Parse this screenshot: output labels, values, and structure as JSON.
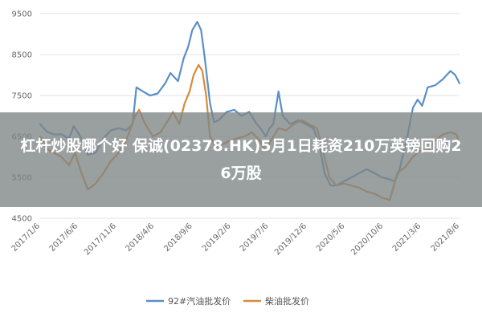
{
  "headline": "杠杆炒股哪个好 保诚(02378.HK)5月1日耗资210万英镑回购26万股",
  "colors": {
    "series1": "#5b8fc9",
    "series2": "#d98a3a",
    "grid": "#e2e2e2",
    "banner": "#7d8585"
  },
  "chart_data": {
    "type": "line",
    "title": "",
    "xlabel": "",
    "ylabel": "",
    "ylim": [
      4500,
      9500
    ],
    "yticks": [
      4500,
      5500,
      6500,
      7500,
      8500,
      9500
    ],
    "ytick_labels": [
      "4500",
      "5500",
      "6500",
      "7500",
      "8500",
      "9500"
    ],
    "xlim": [
      "2017-01-06",
      "2021-08-06"
    ],
    "xticks": [
      "2017-01-06",
      "2017-06-06",
      "2017-11-06",
      "2018-04-06",
      "2018-09-06",
      "2019-02-06",
      "2019-07-06",
      "2019-12-06",
      "2020-05-06",
      "2020-10-06",
      "2021-03-06",
      "2021-08-06"
    ],
    "xtick_labels": [
      "2017/1/6",
      "2017/6/6",
      "2017/11/6",
      "2018/4/6",
      "2018/9/6",
      "2019/2/6",
      "2019/7/6",
      "2019/12/6",
      "2020/5/6",
      "2020/10/6",
      "2021/3/6",
      "2021/8/6"
    ],
    "grid": "horizontal",
    "legend_position": "bottom",
    "series": [
      {
        "name": "92#汽油批发价",
        "color": "#5b8fc9",
        "points": [
          [
            "2017-01-06",
            6800
          ],
          [
            "2017-02-01",
            6620
          ],
          [
            "2017-03-01",
            6550
          ],
          [
            "2017-04-01",
            6550
          ],
          [
            "2017-05-01",
            6450
          ],
          [
            "2017-05-20",
            6750
          ],
          [
            "2017-06-15",
            6500
          ],
          [
            "2017-07-15",
            6050
          ],
          [
            "2017-08-15",
            6100
          ],
          [
            "2017-09-15",
            6450
          ],
          [
            "2017-10-15",
            6650
          ],
          [
            "2017-11-15",
            6700
          ],
          [
            "2017-12-15",
            6650
          ],
          [
            "2018-01-10",
            6800
          ],
          [
            "2018-01-25",
            7700
          ],
          [
            "2018-02-20",
            7600
          ],
          [
            "2018-03-20",
            7500
          ],
          [
            "2018-04-20",
            7550
          ],
          [
            "2018-05-20",
            7800
          ],
          [
            "2018-06-10",
            8050
          ],
          [
            "2018-07-10",
            7850
          ],
          [
            "2018-08-01",
            8400
          ],
          [
            "2018-08-20",
            8700
          ],
          [
            "2018-09-05",
            9100
          ],
          [
            "2018-09-25",
            9300
          ],
          [
            "2018-10-10",
            9100
          ],
          [
            "2018-10-25",
            8400
          ],
          [
            "2018-11-15",
            7300
          ],
          [
            "2018-12-01",
            6850
          ],
          [
            "2018-12-20",
            6900
          ],
          [
            "2019-01-20",
            7100
          ],
          [
            "2019-02-20",
            7150
          ],
          [
            "2019-03-20",
            7000
          ],
          [
            "2019-04-20",
            7100
          ],
          [
            "2019-05-15",
            6850
          ],
          [
            "2019-06-10",
            6650
          ],
          [
            "2019-06-25",
            6500
          ],
          [
            "2019-07-10",
            6700
          ],
          [
            "2019-07-25",
            6800
          ],
          [
            "2019-08-15",
            7600
          ],
          [
            "2019-09-01",
            7000
          ],
          [
            "2019-10-01",
            6800
          ],
          [
            "2019-11-01",
            6900
          ],
          [
            "2019-12-01",
            6800
          ],
          [
            "2020-01-01",
            6700
          ],
          [
            "2020-01-25",
            6300
          ],
          [
            "2020-02-15",
            5600
          ],
          [
            "2020-03-10",
            5300
          ],
          [
            "2020-04-01",
            5300
          ],
          [
            "2020-05-01",
            5400
          ],
          [
            "2020-06-01",
            5500
          ],
          [
            "2020-07-01",
            5600
          ],
          [
            "2020-08-01",
            5700
          ],
          [
            "2020-09-01",
            5600
          ],
          [
            "2020-10-01",
            5500
          ],
          [
            "2020-11-01",
            5450
          ],
          [
            "2020-11-20",
            5400
          ],
          [
            "2020-12-10",
            5700
          ],
          [
            "2021-01-10",
            6500
          ],
          [
            "2021-02-01",
            7200
          ],
          [
            "2021-02-20",
            7400
          ],
          [
            "2021-03-10",
            7250
          ],
          [
            "2021-04-01",
            7700
          ],
          [
            "2021-05-01",
            7750
          ],
          [
            "2021-06-01",
            7900
          ],
          [
            "2021-07-01",
            8100
          ],
          [
            "2021-07-20",
            8000
          ],
          [
            "2021-08-06",
            7800
          ]
        ]
      },
      {
        "name": "柴油批发价",
        "color": "#d98a3a",
        "points": [
          [
            "2017-01-06",
            6500
          ],
          [
            "2017-02-01",
            6200
          ],
          [
            "2017-03-01",
            6100
          ],
          [
            "2017-04-01",
            6000
          ],
          [
            "2017-05-01",
            5800
          ],
          [
            "2017-05-25",
            6100
          ],
          [
            "2017-06-20",
            5600
          ],
          [
            "2017-07-15",
            5200
          ],
          [
            "2017-08-15",
            5350
          ],
          [
            "2017-09-15",
            5600
          ],
          [
            "2017-10-15",
            5900
          ],
          [
            "2017-11-15",
            6100
          ],
          [
            "2017-12-15",
            6400
          ],
          [
            "2018-01-20",
            7000
          ],
          [
            "2018-02-05",
            7150
          ],
          [
            "2018-03-01",
            6800
          ],
          [
            "2018-04-01",
            6500
          ],
          [
            "2018-05-01",
            6600
          ],
          [
            "2018-06-01",
            6900
          ],
          [
            "2018-06-20",
            7100
          ],
          [
            "2018-07-15",
            6800
          ],
          [
            "2018-08-05",
            7300
          ],
          [
            "2018-08-25",
            7600
          ],
          [
            "2018-09-10",
            8000
          ],
          [
            "2018-09-30",
            8250
          ],
          [
            "2018-10-15",
            8100
          ],
          [
            "2018-10-30",
            7500
          ],
          [
            "2018-11-15",
            6500
          ],
          [
            "2018-12-05",
            6250
          ],
          [
            "2019-01-01",
            6300
          ],
          [
            "2019-02-01",
            6400
          ],
          [
            "2019-03-01",
            6450
          ],
          [
            "2019-04-01",
            6500
          ],
          [
            "2019-05-01",
            6600
          ],
          [
            "2019-06-01",
            6400
          ],
          [
            "2019-06-25",
            6150
          ],
          [
            "2019-07-15",
            6400
          ],
          [
            "2019-08-15",
            6700
          ],
          [
            "2019-09-15",
            6650
          ],
          [
            "2019-10-15",
            6800
          ],
          [
            "2019-11-15",
            6900
          ],
          [
            "2019-12-15",
            6800
          ],
          [
            "2020-01-15",
            6700
          ],
          [
            "2020-02-10",
            6100
          ],
          [
            "2020-03-05",
            5500
          ],
          [
            "2020-04-01",
            5300
          ],
          [
            "2020-05-01",
            5350
          ],
          [
            "2020-06-01",
            5300
          ],
          [
            "2020-07-01",
            5250
          ],
          [
            "2020-08-01",
            5150
          ],
          [
            "2020-09-01",
            5100
          ],
          [
            "2020-10-01",
            5000
          ],
          [
            "2020-11-01",
            4950
          ],
          [
            "2020-12-01",
            5600
          ],
          [
            "2021-01-01",
            5750
          ],
          [
            "2021-02-01",
            6000
          ],
          [
            "2021-03-01",
            6150
          ],
          [
            "2021-04-01",
            6150
          ],
          [
            "2021-05-01",
            6400
          ],
          [
            "2021-06-01",
            6550
          ],
          [
            "2021-07-01",
            6600
          ],
          [
            "2021-07-25",
            6550
          ],
          [
            "2021-08-06",
            6300
          ]
        ]
      }
    ]
  }
}
